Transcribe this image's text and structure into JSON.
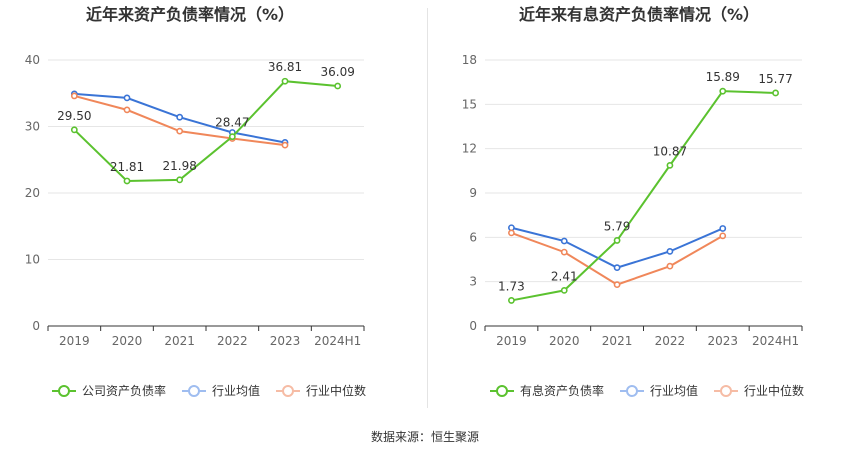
{
  "footer": {
    "source": "数据来源：恒生聚源"
  },
  "chart_data": [
    {
      "type": "line",
      "title": "近年来资产负债率情况（%）",
      "categories": [
        "2019",
        "2020",
        "2021",
        "2022",
        "2023",
        "2024H1"
      ],
      "ylim": [
        0,
        40
      ],
      "yticks": [
        0,
        10,
        20,
        30,
        40
      ],
      "grid": true,
      "legend_position": "bottom",
      "series": [
        {
          "name": "公司资产负债率",
          "color": "#5bc22f",
          "values": [
            29.5,
            21.81,
            21.98,
            28.47,
            36.81,
            36.09
          ],
          "labels": [
            "29.50",
            "21.81",
            "21.98",
            "28.47",
            "36.81",
            "36.09"
          ]
        },
        {
          "name": "行业均值",
          "color": "#3a74d6",
          "values": [
            34.9,
            34.3,
            31.4,
            29.1,
            27.6,
            null
          ]
        },
        {
          "name": "行业中位数",
          "color": "#f0875a",
          "values": [
            34.6,
            32.5,
            29.3,
            28.2,
            27.2,
            null
          ]
        }
      ]
    },
    {
      "type": "line",
      "title": "近年来有息资产负债率情况（%）",
      "categories": [
        "2019",
        "2020",
        "2021",
        "2022",
        "2023",
        "2024H1"
      ],
      "ylim": [
        0,
        18
      ],
      "yticks": [
        0,
        3,
        6,
        9,
        12,
        15,
        18
      ],
      "grid": true,
      "legend_position": "bottom",
      "series": [
        {
          "name": "有息资产负债率",
          "color": "#5bc22f",
          "values": [
            1.73,
            2.41,
            5.79,
            10.87,
            15.89,
            15.77
          ],
          "labels": [
            "1.73",
            "2.41",
            "5.79",
            "10.87",
            "15.89",
            "15.77"
          ]
        },
        {
          "name": "行业均值",
          "color": "#3a74d6",
          "values": [
            6.65,
            5.75,
            3.95,
            5.05,
            6.6,
            null
          ]
        },
        {
          "name": "行业中位数",
          "color": "#f0875a",
          "values": [
            6.3,
            5.0,
            2.8,
            4.05,
            6.1,
            null
          ]
        }
      ]
    }
  ]
}
